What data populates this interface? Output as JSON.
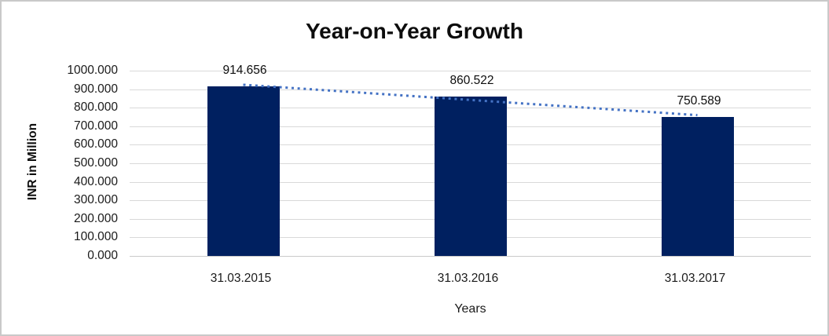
{
  "chart_data": {
    "type": "bar",
    "title": "Year-on-Year Growth",
    "categories": [
      "31.03.2015",
      "31.03.2016",
      "31.03.2017"
    ],
    "values": [
      914.656,
      860.522,
      750.589
    ],
    "data_labels": [
      "914.656",
      "860.522",
      "750.589"
    ],
    "xlabel": "Years",
    "ylabel": "INR in Million",
    "ylim": [
      0,
      1000
    ],
    "ytick_labels": [
      "1000.000",
      "900.000",
      "800.000",
      "700.000",
      "600.000",
      "500.000",
      "400.000",
      "300.000",
      "200.000",
      "100.000",
      "0.000"
    ],
    "grid": true,
    "legend": "none",
    "bar_color": "#002060",
    "gridline_color": "#d9d9d9",
    "border_color": "#c9c9c9",
    "trendline": {
      "type": "linear",
      "style": "dotted",
      "color": "#4472c4",
      "start_value": 923.96,
      "end_value": 759.89
    }
  }
}
